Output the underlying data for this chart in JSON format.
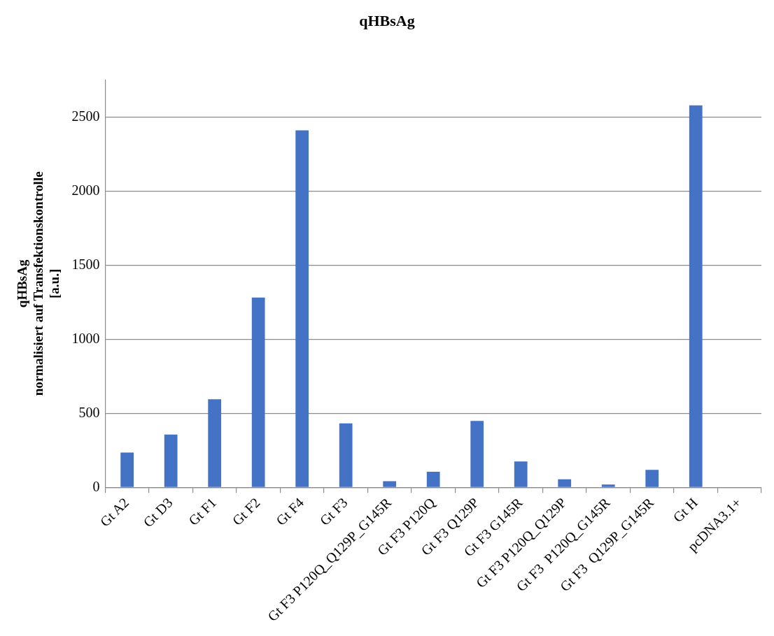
{
  "chart_data": {
    "type": "bar",
    "title": "qHBsAg",
    "ylabel": "qHBsAg\nnormalisiert auf Transfektionskontrolle\n[a.u.]",
    "categories": [
      "Gt A2",
      "Gt D3",
      "Gt F1",
      "Gt F2",
      "Gt F4",
      "Gt F3",
      "Gt F3 P120Q_Q129P_G145R",
      "Gt F3 P120Q",
      "Gt F3 Q129P",
      "Gt F3 G145R",
      "Gt F3 P120Q_Q129P",
      "Gt F3  P120Q_G145R",
      "Gt F3  Q129P_G145R",
      "Gt H",
      "pcDNA3.1+"
    ],
    "values": [
      235,
      356,
      595,
      1281,
      2410,
      432,
      41,
      105,
      448,
      175,
      54,
      19,
      118,
      2579,
      0
    ],
    "color": "#4472c4",
    "ylim": [
      0,
      2750
    ],
    "yticks": [
      0,
      500,
      1000,
      1500,
      2000,
      2500
    ],
    "grid": "y",
    "legend": false
  }
}
